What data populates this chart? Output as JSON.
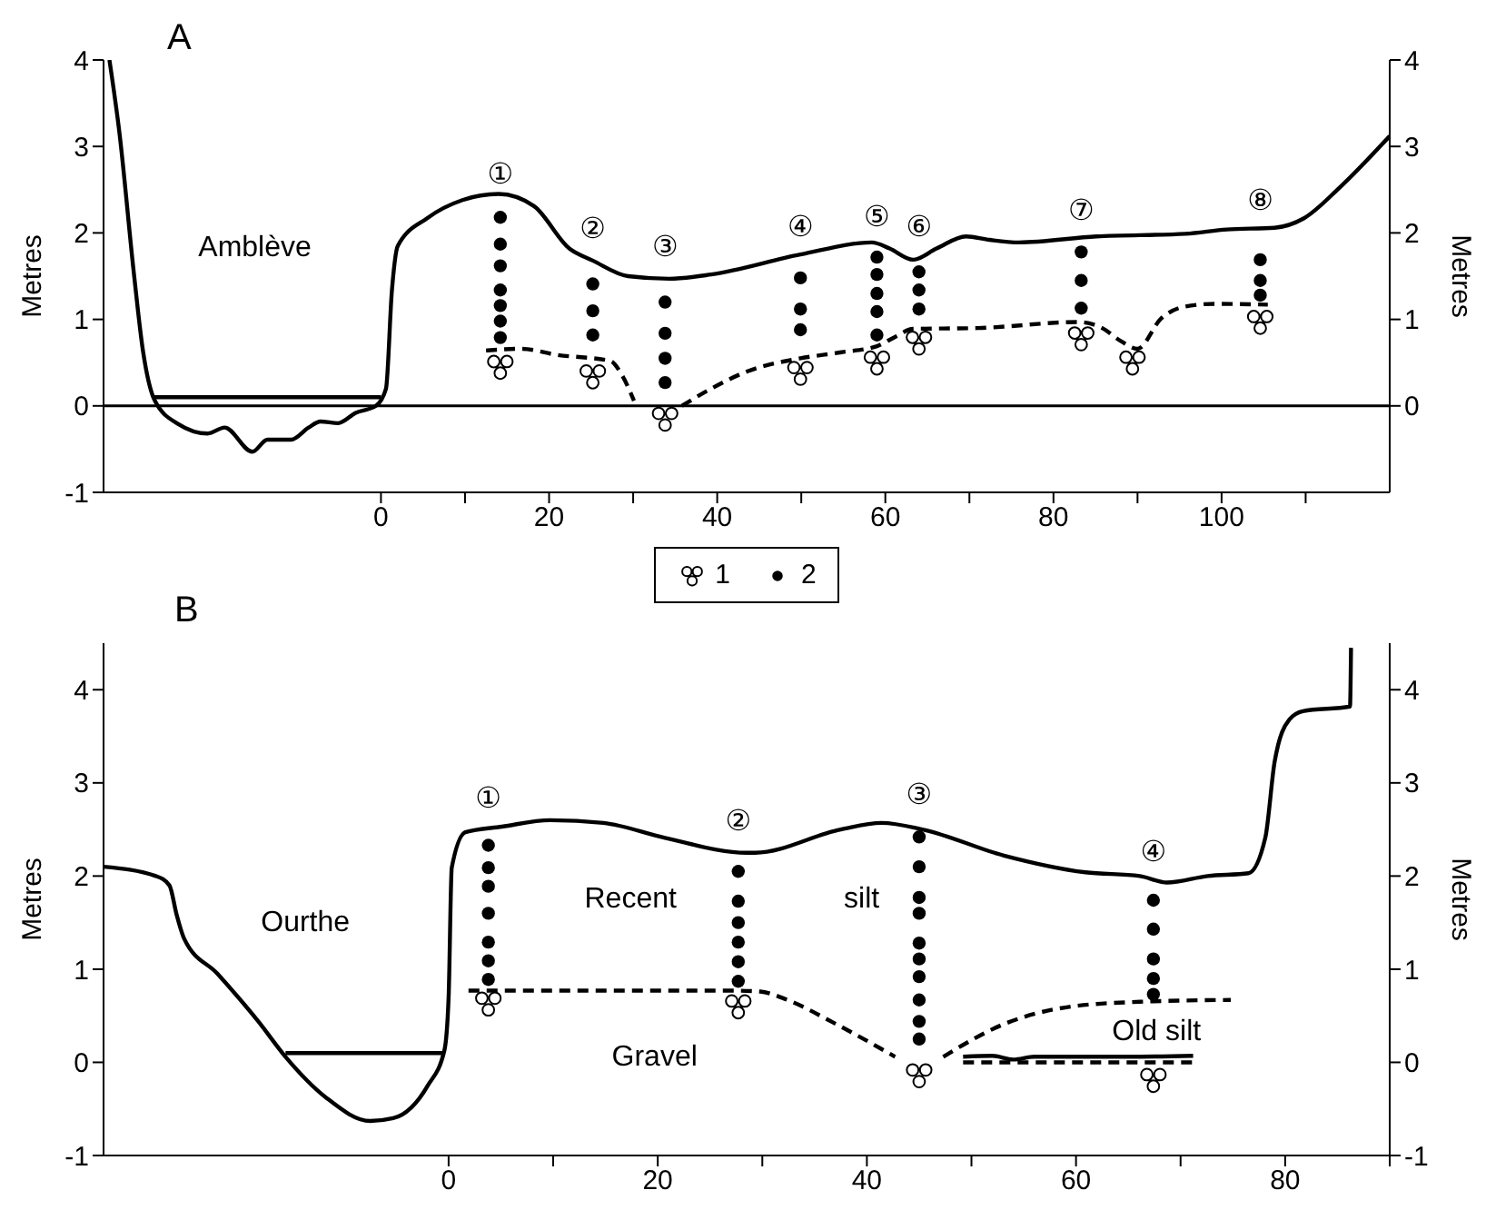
{
  "chart_data": [
    {
      "type": "line",
      "title": "A",
      "ylabel": "Metres",
      "y2label": "Metres",
      "legend": "bottom",
      "xlim": [
        -33,
        120
      ],
      "xticks": [
        0,
        {
          "value": 10,
          "label": null
        },
        20,
        {
          "value": 30,
          "label": null
        },
        40,
        {
          "value": 50,
          "label": null
        },
        60,
        {
          "value": 70,
          "label": null
        },
        80,
        {
          "value": 90,
          "label": null
        },
        100,
        {
          "value": 110,
          "label": null
        }
      ],
      "ylim": [
        -1,
        4
      ],
      "yticks": [
        -1,
        0,
        1,
        2,
        3,
        4
      ],
      "y2lim": [
        -1,
        4
      ],
      "y2ticks": [
        0,
        1,
        2,
        3,
        4
      ],
      "ref_lines": [
        {
          "axis": "y",
          "value": 0
        }
      ],
      "annotations": [
        "Amblève",
        "①",
        "②",
        "③",
        "④",
        "⑤",
        "⑥",
        "⑦",
        "⑧"
      ],
      "series": [
        {
          "type": "line",
          "color": "#000000",
          "line_style": "solid",
          "x": [
            -32.3,
            -31.1,
            -29.4,
            -28.3,
            -26.9,
            -24.1,
            -20.6,
            -18.6,
            -15.3,
            -13.5,
            -10.7,
            -8.6,
            -7.2,
            -5.1,
            -3,
            -0.6,
            0.6,
            1.3,
            2,
            5.5,
            9.7,
            14,
            18.2,
            22.4,
            25.2,
            29.4,
            34.3,
            39.3,
            49.9,
            58.4,
            60.5,
            63.3,
            66.1,
            69.6,
            72.4,
            75.9,
            85.1,
            95.7,
            100.6,
            106.3,
            109.8,
            114,
            120
          ],
          "values": [
            4,
            3.15,
            1.54,
            0.63,
            0.06,
            -0.21,
            -0.32,
            -0.25,
            -0.53,
            -0.39,
            -0.39,
            -0.25,
            -0.18,
            -0.2,
            -0.08,
            0,
            0.2,
            1.33,
            1.85,
            2.17,
            2.38,
            2.45,
            2.31,
            1.82,
            1.68,
            1.5,
            1.47,
            1.52,
            1.75,
            1.89,
            1.82,
            1.69,
            1.82,
            1.96,
            1.92,
            1.89,
            1.96,
            1.99,
            2.04,
            2.06,
            2.17,
            2.52,
            3.12
          ]
        },
        {
          "type": "line",
          "color": "#000000",
          "line_style": "solid",
          "x": [
            -27,
            0
          ],
          "values": [
            0.1,
            0.1
          ]
        },
        {
          "type": "line",
          "color": "#000000",
          "line_style": "dashed",
          "x": [
            12.5,
            16.7,
            20.9,
            27.3,
            28.7,
            30.1,
            33,
            35.8,
            39.3,
            43.6,
            49.9,
            54.8,
            59,
            61.2,
            63.3,
            71,
            83,
            85.8,
            88,
            90,
            92.8,
            95.7,
            99.2,
            105.5
          ],
          "values": [
            0.64,
            0.66,
            0.59,
            0.52,
            0.35,
            0.06,
            null,
            0,
            0.2,
            0.4,
            0.55,
            0.62,
            0.69,
            0.8,
            0.89,
            0.9,
            0.97,
            0.9,
            0.75,
            0.66,
            1.01,
            1.15,
            1.18,
            1.17
          ]
        },
        {
          "type": "scatter",
          "name": "1",
          "color": "#ffffff",
          "x": [
            14.2,
            25.2,
            33.8,
            49.9,
            59,
            64,
            83.3,
            89.4,
            104.6
          ],
          "values": [
            0.45,
            0.34,
            -0.15,
            0.38,
            0.5,
            0.73,
            0.78,
            0.5,
            0.97
          ]
        },
        {
          "type": "scatter",
          "name": "2",
          "color": "#000000",
          "marker": "circle",
          "x": [
            14.2,
            14.2,
            14.2,
            14.2,
            14.2,
            14.2,
            14.2,
            25.2,
            25.2,
            25.2,
            33.8,
            33.8,
            33.8,
            33.8,
            49.9,
            49.9,
            49.9,
            59,
            59,
            59,
            59,
            59,
            64,
            64,
            64,
            83.3,
            83.3,
            83.3,
            104.6,
            104.6,
            104.6
          ],
          "values": [
            2.18,
            1.87,
            1.62,
            1.34,
            1.16,
            0.98,
            0.79,
            1.41,
            1.1,
            0.82,
            1.2,
            0.84,
            0.55,
            0.27,
            1.48,
            1.12,
            0.88,
            1.72,
            1.52,
            1.3,
            1.09,
            0.82,
            1.55,
            1.34,
            1.12,
            1.78,
            1.45,
            1.13,
            1.69,
            1.45,
            1.28
          ]
        }
      ]
    },
    {
      "type": "line",
      "title": "B",
      "ylabel": "Metres",
      "y2label": "Metres",
      "xlim": [
        -33,
        90
      ],
      "xticks": [
        0,
        {
          "value": 10,
          "label": null
        },
        20,
        {
          "value": 30,
          "label": null
        },
        40,
        {
          "value": 50,
          "label": null
        },
        60,
        {
          "value": 70,
          "label": null
        },
        80,
        {
          "value": 90,
          "label": null
        }
      ],
      "ylim": [
        -1,
        4.5
      ],
      "yticks": [
        -1,
        0,
        1,
        2,
        3,
        4
      ],
      "y2lim": [
        -1,
        4.5
      ],
      "y2ticks": [
        -1,
        0,
        1,
        2,
        3,
        4
      ],
      "annotations": [
        "Ourthe",
        "Recent",
        "silt",
        "Gravel",
        "Old silt",
        "①",
        "②",
        "③",
        "④"
      ],
      "series": [
        {
          "type": "line",
          "color": "#000000",
          "line_style": "solid",
          "x": [
            -33,
            -28,
            -26.7,
            -26,
            -25.3,
            -22.1,
            -18.2,
            -15.6,
            -11.7,
            -7.5,
            -5.3,
            -2,
            -0.4,
            0,
            0.3,
            1.6,
            5.1,
            9.7,
            14.8,
            20.7,
            28.5,
            29.3,
            37.5,
            41.4,
            45.3,
            53.1,
            60.9,
            66.1,
            68.7,
            72.6,
            76.5,
            78.1,
            79,
            80.4,
            81.7,
            86.2,
            86.3
          ],
          "values": [
            2.1,
            2,
            1.9,
            1.58,
            1.33,
            0.95,
            0.44,
            0.06,
            -0.38,
            -0.63,
            -0.6,
            -0.25,
            0.13,
            0.7,
            2.09,
            2.47,
            2.53,
            2.6,
            2.57,
            2.41,
            2.25,
            2.25,
            2.5,
            2.57,
            2.5,
            2.22,
            2.04,
            2,
            1.93,
            2,
            2.03,
            2.41,
            3.23,
            3.68,
            3.77,
            3.82,
            4.45
          ]
        },
        {
          "type": "line",
          "color": "#000000",
          "line_style": "solid",
          "x": [
            -15.6,
            -0.4
          ],
          "values": [
            0.1,
            0.1
          ]
        },
        {
          "type": "line",
          "color": "#000000",
          "line_style": "dashed",
          "x": [
            1.9,
            27.2,
            29.8,
            32.4,
            36.9,
            42.7,
            45,
            47.3,
            53.1,
            59.6,
            66.1,
            74.8
          ],
          "values": [
            0.77,
            0.77,
            0.76,
            0.67,
            0.42,
            0.06,
            null,
            0.06,
            0.41,
            0.6,
            0.65,
            0.67
          ]
        },
        {
          "type": "line",
          "color": "#000000",
          "line_style": "solid",
          "x": [
            49.2,
            52,
            54,
            56,
            60,
            65,
            71.2
          ],
          "values": [
            0.06,
            0.07,
            0.03,
            0.06,
            0.06,
            0.06,
            0.07
          ]
        },
        {
          "type": "line",
          "color": "#000000",
          "line_style": "dashed",
          "x": [
            49.2,
            71.2
          ],
          "values": [
            0,
            0
          ]
        },
        {
          "type": "scatter",
          "color": "#ffffff",
          "x": [
            3.8,
            27.7,
            45,
            67.4
          ],
          "values": [
            0.63,
            0.6,
            -0.14,
            -0.19
          ]
        },
        {
          "type": "scatter",
          "color": "#000000",
          "marker": "circle",
          "x": [
            3.8,
            3.8,
            3.8,
            3.8,
            3.8,
            3.8,
            3.8,
            27.7,
            27.7,
            27.7,
            27.7,
            27.7,
            27.7,
            45,
            45,
            45,
            45,
            45,
            45,
            45,
            45,
            45,
            45,
            67.4,
            67.4,
            67.4,
            67.4,
            67.4
          ],
          "values": [
            2.33,
            2.09,
            1.89,
            1.6,
            1.29,
            1.09,
            0.89,
            2.05,
            1.73,
            1.5,
            1.29,
            1.08,
            0.87,
            2.42,
            2.1,
            1.77,
            1.6,
            1.28,
            1.11,
            0.92,
            0.67,
            0.44,
            0.25,
            1.74,
            1.43,
            1.11,
            0.9,
            0.73
          ]
        }
      ]
    }
  ]
}
